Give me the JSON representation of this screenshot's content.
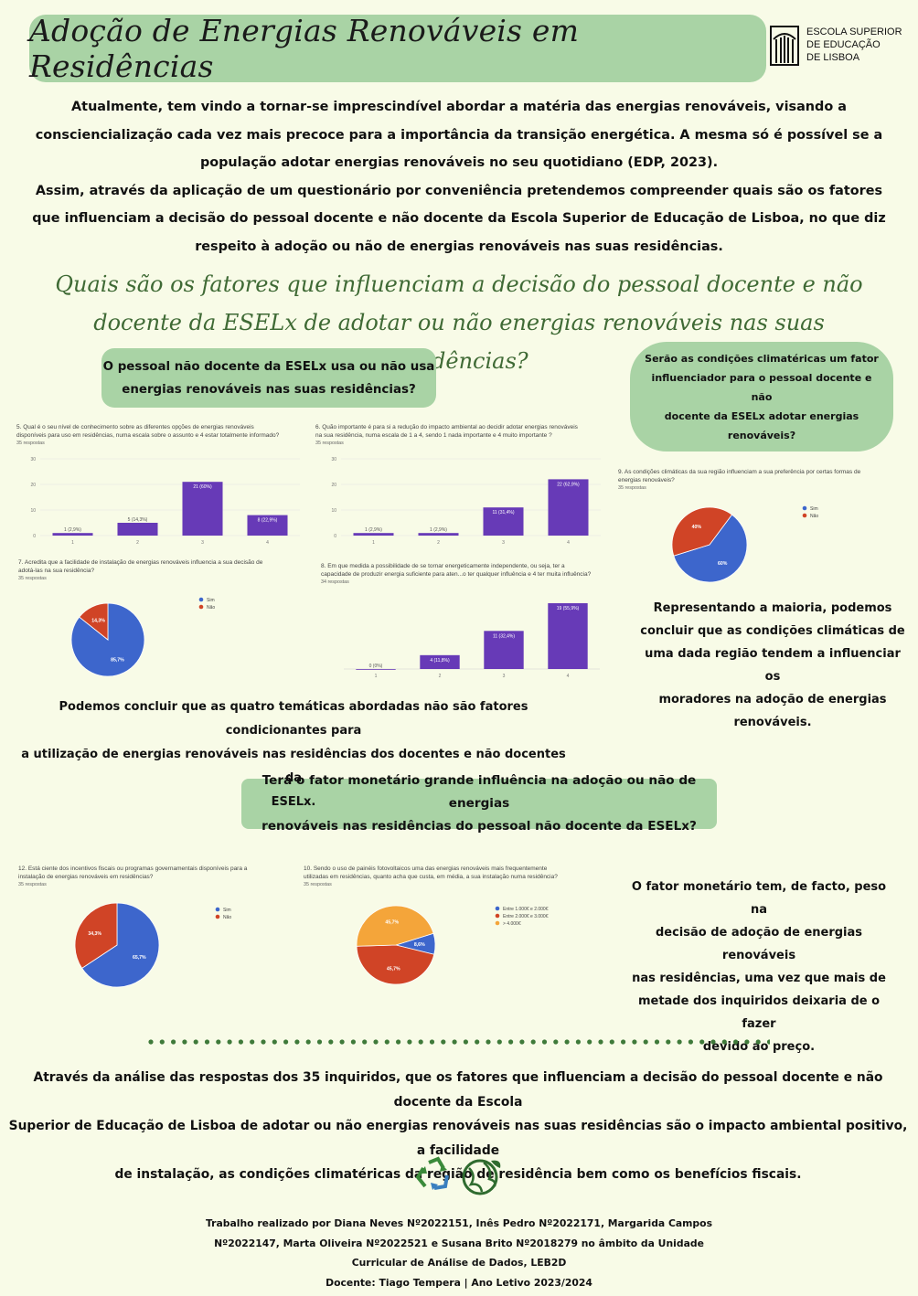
{
  "header": {
    "title": "Adoção de Energias Renováveis em Residências",
    "logo_lines": [
      "ESCOLA SUPERIOR",
      "DE EDUCAÇÃO",
      "DE LISBOA"
    ]
  },
  "intro": {
    "lines": [
      "Atualmente, tem vindo a tornar-se imprescindível abordar a matéria das energias renováveis, visando a",
      "consciencialização cada vez mais precoce para a importância da transição energética. A mesma só é possível se a",
      "população adotar energias renováveis no seu quotidiano (EDP, 2023).",
      "Assim, através da aplicação de um questionário por conveniência pretendemos compreender quais são os fatores",
      "que influenciam a decisão do pessoal docente e não docente da Escola Superior de Educação de Lisboa, no que diz",
      "respeito à adoção ou não de energias renováveis nas suas residências."
    ]
  },
  "research_question": {
    "lines": [
      "Quais são os fatores que influenciam a decisão do pessoal docente e não",
      "docente da ESELx de adotar ou não energias renováveis nas suas residências?"
    ]
  },
  "boxes": {
    "box1_lines": [
      "O pessoal não docente da ESELx usa ou não usa",
      "energias renováveis nas suas residências?"
    ],
    "box2_lines": [
      "Serão as condições climatéricas um fator",
      "influenciador para o pessoal docente e não",
      "docente da ESELx adotar energias renováveis?"
    ],
    "box3_lines": [
      "Terá o fator monetário grande influência na adoção ou não de energias",
      "renováveis nas residências do pessoal não docente da ESELx?"
    ]
  },
  "legend": {
    "sim": "Sim",
    "nao": "Não"
  },
  "chart_data": [
    {
      "id": "q5",
      "type": "bar",
      "title_lines": [
        "5. Qual é o seu nível de conhecimento sobre as diferentes opções de energias renováveis",
        "disponíveis para uso em residências, numa escala       sobre o assunto e 4 estar totalmente informado?"
      ],
      "responses": "35 respostas",
      "categories": [
        "1",
        "2",
        "3",
        "4"
      ],
      "values": [
        1,
        5,
        21,
        8
      ],
      "labels": [
        "1 (2,9%)",
        "5 (14,3%)",
        "21 (60%)",
        "8 (22,9%)"
      ],
      "yticks": [
        0,
        10,
        20,
        30
      ],
      "ylim": [
        0,
        30
      ]
    },
    {
      "id": "q6",
      "type": "bar",
      "title_lines": [
        "6. Quão importante é para si a redução do impacto ambiental ao decidir adotar energias renováveis",
        "na sua residência, numa escala de 1 a 4, sendo 1 nada importante e 4 muito importante ?"
      ],
      "responses": "35 respostas",
      "categories": [
        "1",
        "2",
        "3",
        "4"
      ],
      "values": [
        1,
        1,
        11,
        22
      ],
      "labels": [
        "1 (2,9%)",
        "1 (2,9%)",
        "11 (31,4%)",
        "22 (62,9%)"
      ],
      "yticks": [
        0,
        10,
        20,
        30
      ],
      "ylim": [
        0,
        30
      ]
    },
    {
      "id": "q7",
      "type": "pie",
      "title_lines": [
        "7. Acredita que a facilidade de instalação de energias renováveis influencia a sua decisão de",
        "adotá-las na sua residência?"
      ],
      "responses": "35 respostas",
      "series": [
        {
          "name": "Sim",
          "value": 85.7,
          "label": "85,7%",
          "color": "#3d66cc"
        },
        {
          "name": "Não",
          "value": 14.3,
          "label": "14,3%",
          "color": "#d04426"
        }
      ]
    },
    {
      "id": "q8",
      "type": "bar",
      "title_lines": [
        "8. Em que medida a possibilidade de se tornar energeticamente independente, ou seja, ter a",
        "capacidade de produzir energia suficiente para aten...o ter qualquer influência e 4 ter muita influência?"
      ],
      "responses": "34 respostas",
      "categories": [
        "1",
        "2",
        "3",
        "4"
      ],
      "values": [
        0,
        4,
        11,
        19
      ],
      "labels": [
        "0 (0%)",
        "4 (11,8%)",
        "11 (32,4%)",
        "19 (55,9%)"
      ],
      "ylim": [
        0,
        19
      ]
    },
    {
      "id": "q9",
      "type": "pie",
      "title_lines": [
        "9. As condições climáticas da sua região influenciam a sua preferência por certas formas de",
        "energias renováveis?"
      ],
      "responses": "35 respostas",
      "series": [
        {
          "name": "Sim",
          "value": 60,
          "label": "60%",
          "color": "#3d66cc"
        },
        {
          "name": "Não",
          "value": 40,
          "label": "40%",
          "color": "#d04426"
        }
      ]
    },
    {
      "id": "q12",
      "type": "pie",
      "title_lines": [
        "12. Está ciente dos incentivos fiscais ou programas governamentais disponíveis para a",
        "instalação de energias renováveis em residências?"
      ],
      "responses": "35 respostas",
      "series": [
        {
          "name": "Sim",
          "value": 65.7,
          "label": "65,7%",
          "color": "#3d66cc"
        },
        {
          "name": "Não",
          "value": 34.3,
          "label": "34,3%",
          "color": "#d04426"
        }
      ]
    },
    {
      "id": "q10",
      "type": "pie",
      "title_lines": [
        "10. Sendo o uso de painéis fotovoltaicos uma das energias renováveis mais frequentemente",
        "utilizadas em residências, quanto acha que custa, em média, a sua instalação numa residência?"
      ],
      "responses": "35 respostas",
      "series": [
        {
          "name": "Entre 1.000€ e 2.000€",
          "value": 8.6,
          "label": "8,6%",
          "color": "#3d66cc"
        },
        {
          "name": "Entre 2.000€ e 3.000€",
          "value": 45.7,
          "label": "45,7%",
          "color": "#d04426"
        },
        {
          "name": "> 4.000€",
          "value": 45.7,
          "label": "45,7%",
          "color": "#f4a53a"
        }
      ]
    }
  ],
  "conclusions": {
    "c1_lines": [
      "Podemos concluir que as quatro temáticas abordadas não são fatores condicionantes para",
      "a utilização de energias renováveis nas residências dos docentes e não docentes da",
      "ESELx."
    ],
    "c2_lines": [
      "Representando a maioria, podemos",
      "concluir que as condições climáticas de",
      "uma dada região tendem a influenciar os",
      "moradores na adoção de energias",
      "renováveis."
    ],
    "c3_lines": [
      "O fator monetário tem, de facto, peso na",
      "decisão de adoção de energias renováveis",
      "nas residências, uma vez que mais de",
      "metade dos inquiridos deixaria de o fazer",
      "devido ao preço."
    ]
  },
  "final": {
    "lines": [
      "Através da análise das respostas dos 35 inquiridos,  que os fatores que influenciam a decisão do pessoal docente e não docente da Escola",
      "Superior de Educação de Lisboa de adotar ou não energias renováveis nas suas residências são o impacto ambiental positivo, a facilidade",
      "de instalação, as condições climatéricas da região de residência bem como os benefícios fiscais."
    ]
  },
  "credits": {
    "lines": [
      "Trabalho realizado por Diana Neves Nº2022151, Inês Pedro Nº2022171, Margarida Campos",
      "Nº2022147, Marta Oliveira Nº2022521 e Susana Brito Nº2018279  no âmbito da Unidade",
      "Curricular de Análise de Dados, LEB2D",
      "Docente: Tiago Tempera  |   Ano Letivo 2023/2024"
    ]
  },
  "colors": {
    "bar": "#673ab7",
    "title_box": "#a9d3a5",
    "question_text": "#3f6a35",
    "background": "#f8fbe7",
    "dots": "#3f7a3a"
  }
}
